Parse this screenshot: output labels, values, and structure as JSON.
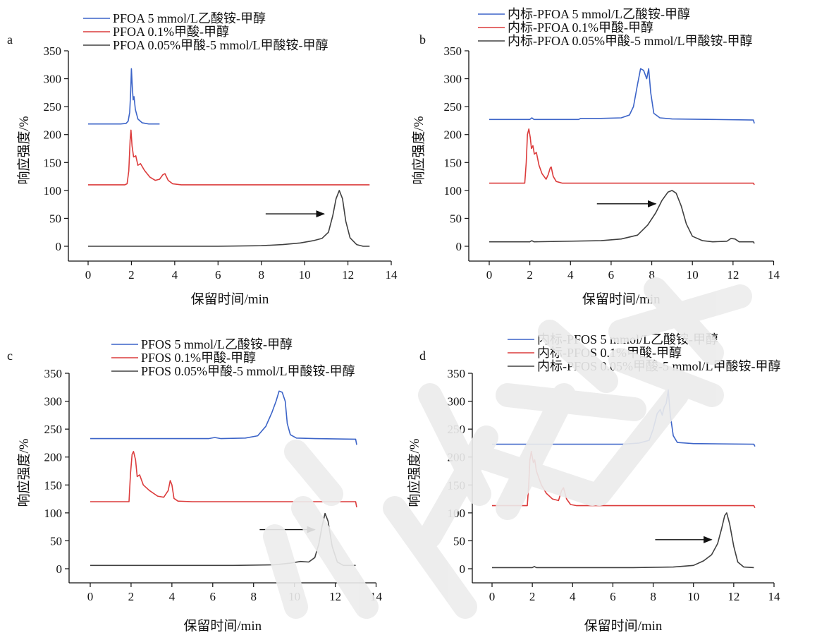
{
  "chart_data": [
    {
      "panel": "a",
      "type": "line",
      "xlabel": "保留时间/min",
      "ylabel": "响应强度/%",
      "xlim": [
        0,
        14
      ],
      "ylim": [
        0,
        350
      ],
      "xticks": [
        0,
        2,
        4,
        6,
        8,
        10,
        12,
        14
      ],
      "yticks": [
        0,
        50,
        100,
        150,
        200,
        250,
        300,
        350
      ],
      "series": [
        {
          "name": "PFOA 5 mmol/L乙酸铵-甲醇",
          "color": "#3c64c8",
          "points": [
            [
              0,
              219
            ],
            [
              1.5,
              219
            ],
            [
              1.75,
              220
            ],
            [
              1.85,
              224
            ],
            [
              1.92,
              240
            ],
            [
              1.97,
              280
            ],
            [
              2.0,
              318
            ],
            [
              2.04,
              285
            ],
            [
              2.08,
              262
            ],
            [
              2.12,
              268
            ],
            [
              2.18,
              245
            ],
            [
              2.3,
              228
            ],
            [
              2.5,
              221
            ],
            [
              2.8,
              219
            ],
            [
              3.3,
              219
            ]
          ]
        },
        {
          "name": "PFOA 0.1%甲酸-甲醇",
          "color": "#dc3c3c",
          "points": [
            [
              0,
              110
            ],
            [
              1.7,
              110
            ],
            [
              1.8,
              112
            ],
            [
              1.88,
              135
            ],
            [
              1.94,
              190
            ],
            [
              1.98,
              208
            ],
            [
              2.03,
              180
            ],
            [
              2.1,
              160
            ],
            [
              2.2,
              162
            ],
            [
              2.3,
              145
            ],
            [
              2.42,
              148
            ],
            [
              2.6,
              136
            ],
            [
              2.85,
              124
            ],
            [
              3.1,
              118
            ],
            [
              3.3,
              120
            ],
            [
              3.45,
              128
            ],
            [
              3.55,
              130
            ],
            [
              3.7,
              118
            ],
            [
              3.9,
              112
            ],
            [
              4.3,
              110
            ],
            [
              13.0,
              110
            ]
          ]
        },
        {
          "name": "PFOA 0.05%甲酸-5 mmol/L甲酸铵-甲醇",
          "color": "#404040",
          "points": [
            [
              0,
              0
            ],
            [
              6,
              0
            ],
            [
              8,
              1
            ],
            [
              9,
              3
            ],
            [
              9.8,
              6
            ],
            [
              10.4,
              10
            ],
            [
              10.8,
              14
            ],
            [
              11.1,
              25
            ],
            [
              11.3,
              55
            ],
            [
              11.45,
              85
            ],
            [
              11.6,
              100
            ],
            [
              11.75,
              85
            ],
            [
              11.9,
              45
            ],
            [
              12.1,
              15
            ],
            [
              12.4,
              3
            ],
            [
              12.7,
              0
            ],
            [
              13.0,
              0
            ]
          ]
        }
      ],
      "annotations": [
        {
          "type": "arrow",
          "from": [
            8.2,
            58
          ],
          "to": [
            10.9,
            58
          ]
        }
      ]
    },
    {
      "panel": "b",
      "type": "line",
      "xlabel": "保留时间/min",
      "ylabel": "响应强度/%",
      "xlim": [
        0,
        14
      ],
      "ylim": [
        0,
        350
      ],
      "xticks": [
        0,
        2,
        4,
        6,
        8,
        10,
        12,
        14
      ],
      "yticks": [
        0,
        50,
        100,
        150,
        200,
        250,
        300,
        350
      ],
      "series": [
        {
          "name": "内标-PFOA 5 mmol/L乙酸铵-甲醇",
          "color": "#3c64c8",
          "points": [
            [
              0,
              227
            ],
            [
              2.0,
              227
            ],
            [
              2.1,
              230
            ],
            [
              2.2,
              227
            ],
            [
              4.4,
              227
            ],
            [
              4.5,
              229
            ],
            [
              5.5,
              229
            ],
            [
              6.5,
              230
            ],
            [
              6.9,
              235
            ],
            [
              7.1,
              250
            ],
            [
              7.3,
              290
            ],
            [
              7.45,
              318
            ],
            [
              7.6,
              315
            ],
            [
              7.75,
              300
            ],
            [
              7.85,
              318
            ],
            [
              7.95,
              275
            ],
            [
              8.1,
              238
            ],
            [
              8.4,
              230
            ],
            [
              9.0,
              228
            ],
            [
              11.0,
              227
            ],
            [
              13.0,
              226
            ],
            [
              13.05,
              220
            ]
          ]
        },
        {
          "name": "内标-PFOA 0.1%甲酸-甲醇",
          "color": "#dc3c3c",
          "points": [
            [
              0,
              113
            ],
            [
              1.75,
              113
            ],
            [
              1.82,
              150
            ],
            [
              1.88,
              200
            ],
            [
              1.95,
              210
            ],
            [
              2.02,
              195
            ],
            [
              2.08,
              175
            ],
            [
              2.15,
              180
            ],
            [
              2.22,
              165
            ],
            [
              2.32,
              168
            ],
            [
              2.45,
              145
            ],
            [
              2.6,
              130
            ],
            [
              2.8,
              120
            ],
            [
              2.9,
              128
            ],
            [
              3.0,
              140
            ],
            [
              3.05,
              142
            ],
            [
              3.15,
              125
            ],
            [
              3.3,
              116
            ],
            [
              3.6,
              113
            ],
            [
              13.0,
              113
            ],
            [
              13.05,
              110
            ]
          ]
        },
        {
          "name": "内标-PFOA 0.05%甲酸-5 mmol/L甲酸铵-甲醇",
          "color": "#404040",
          "points": [
            [
              0,
              8
            ],
            [
              2.0,
              8
            ],
            [
              2.1,
              10
            ],
            [
              2.2,
              8
            ],
            [
              5.5,
              10
            ],
            [
              6.5,
              13
            ],
            [
              7.3,
              20
            ],
            [
              7.8,
              38
            ],
            [
              8.2,
              60
            ],
            [
              8.5,
              82
            ],
            [
              8.8,
              97
            ],
            [
              9.0,
              100
            ],
            [
              9.2,
              95
            ],
            [
              9.45,
              72
            ],
            [
              9.7,
              40
            ],
            [
              10.0,
              18
            ],
            [
              10.5,
              10
            ],
            [
              11.0,
              8
            ],
            [
              11.7,
              9
            ],
            [
              11.9,
              14
            ],
            [
              12.1,
              13
            ],
            [
              12.3,
              8
            ],
            [
              13.0,
              8
            ],
            [
              13.05,
              5
            ]
          ]
        }
      ],
      "annotations": [
        {
          "type": "arrow",
          "from": [
            5.3,
            76
          ],
          "to": [
            8.2,
            76
          ]
        }
      ]
    },
    {
      "panel": "c",
      "type": "line",
      "xlabel": "保留时间/min",
      "ylabel": "响应强度/%",
      "xlim": [
        0,
        14
      ],
      "ylim": [
        0,
        350
      ],
      "xticks": [
        0,
        2,
        4,
        6,
        8,
        10,
        12,
        14
      ],
      "yticks": [
        0,
        50,
        100,
        150,
        200,
        250,
        300,
        350
      ],
      "series": [
        {
          "name": "PFOS 5 mmol/L乙酸铵-甲醇",
          "color": "#3c64c8",
          "points": [
            [
              0,
              233
            ],
            [
              5.8,
              233
            ],
            [
              6.1,
              235
            ],
            [
              6.4,
              233
            ],
            [
              7.6,
              234
            ],
            [
              8.2,
              238
            ],
            [
              8.6,
              255
            ],
            [
              8.9,
              280
            ],
            [
              9.1,
              300
            ],
            [
              9.25,
              318
            ],
            [
              9.4,
              316
            ],
            [
              9.55,
              300
            ],
            [
              9.65,
              260
            ],
            [
              9.8,
              240
            ],
            [
              10.1,
              234
            ],
            [
              11.0,
              233
            ],
            [
              13.0,
              232
            ],
            [
              13.05,
              222
            ]
          ]
        },
        {
          "name": "PFOS 0.1%甲酸-甲醇",
          "color": "#dc3c3c",
          "points": [
            [
              0,
              120
            ],
            [
              1.9,
              120
            ],
            [
              1.97,
              170
            ],
            [
              2.05,
              205
            ],
            [
              2.12,
              210
            ],
            [
              2.22,
              195
            ],
            [
              2.3,
              165
            ],
            [
              2.42,
              168
            ],
            [
              2.6,
              150
            ],
            [
              2.9,
              140
            ],
            [
              3.3,
              130
            ],
            [
              3.6,
              128
            ],
            [
              3.82,
              140
            ],
            [
              3.92,
              158
            ],
            [
              4.0,
              150
            ],
            [
              4.1,
              126
            ],
            [
              4.3,
              121
            ],
            [
              5.0,
              120
            ],
            [
              13.0,
              120
            ],
            [
              13.05,
              110
            ]
          ]
        },
        {
          "name": "PFOS 0.05%甲酸-5 mmol/L甲酸铵-甲醇",
          "color": "#404040",
          "points": [
            [
              0,
              6
            ],
            [
              7,
              6
            ],
            [
              9,
              7
            ],
            [
              9.8,
              10
            ],
            [
              10.3,
              13
            ],
            [
              10.7,
              12
            ],
            [
              11.0,
              20
            ],
            [
              11.2,
              45
            ],
            [
              11.35,
              75
            ],
            [
              11.5,
              99
            ],
            [
              11.65,
              85
            ],
            [
              11.85,
              40
            ],
            [
              12.1,
              12
            ],
            [
              12.4,
              6
            ],
            [
              13.0,
              6
            ]
          ]
        }
      ],
      "annotations": [
        {
          "type": "arrow",
          "from": [
            8.3,
            70
          ],
          "to": [
            11.0,
            70
          ]
        }
      ]
    },
    {
      "panel": "d",
      "type": "line",
      "xlabel": "保留时间/min",
      "ylabel": "响应强度/%",
      "xlim": [
        0,
        14
      ],
      "ylim": [
        0,
        350
      ],
      "xticks": [
        0,
        2,
        4,
        6,
        8,
        10,
        12,
        14
      ],
      "yticks": [
        0,
        50,
        100,
        150,
        200,
        250,
        300,
        350
      ],
      "series": [
        {
          "name": "内标-PFOS 5 mmol/L乙酸铵-甲醇",
          "color": "#3c64c8",
          "points": [
            [
              0,
              223
            ],
            [
              6.5,
              223
            ],
            [
              7.3,
              225
            ],
            [
              7.8,
              230
            ],
            [
              8.0,
              250
            ],
            [
              8.2,
              278
            ],
            [
              8.35,
              285
            ],
            [
              8.45,
              275
            ],
            [
              8.55,
              290
            ],
            [
              8.65,
              296
            ],
            [
              8.75,
              320
            ],
            [
              8.85,
              275
            ],
            [
              9.0,
              238
            ],
            [
              9.2,
              226
            ],
            [
              10,
              224
            ],
            [
              13.0,
              223
            ],
            [
              13.05,
              219
            ]
          ]
        },
        {
          "name": "内标-PFOS 0.1%甲酸-甲醇",
          "color": "#dc3c3c",
          "points": [
            [
              0,
              113
            ],
            [
              1.75,
              113
            ],
            [
              1.82,
              150
            ],
            [
              1.88,
              195
            ],
            [
              1.95,
              210
            ],
            [
              2.0,
              200
            ],
            [
              2.05,
              190
            ],
            [
              2.12,
              195
            ],
            [
              2.2,
              175
            ],
            [
              2.3,
              165
            ],
            [
              2.45,
              150
            ],
            [
              2.7,
              135
            ],
            [
              3.0,
              125
            ],
            [
              3.3,
              122
            ],
            [
              3.45,
              140
            ],
            [
              3.55,
              145
            ],
            [
              3.7,
              125
            ],
            [
              3.9,
              115
            ],
            [
              4.2,
              113
            ],
            [
              13.0,
              113
            ],
            [
              13.05,
              109
            ]
          ]
        },
        {
          "name": "内标-PFOS 0.05%甲酸-5 mmol/L甲酸铵-甲醇",
          "color": "#404040",
          "points": [
            [
              0,
              2
            ],
            [
              2.0,
              2
            ],
            [
              2.1,
              4
            ],
            [
              2.2,
              2
            ],
            [
              7,
              2
            ],
            [
              9,
              3
            ],
            [
              10,
              6
            ],
            [
              10.5,
              14
            ],
            [
              10.9,
              25
            ],
            [
              11.2,
              45
            ],
            [
              11.4,
              72
            ],
            [
              11.55,
              95
            ],
            [
              11.65,
              100
            ],
            [
              11.8,
              80
            ],
            [
              12.0,
              40
            ],
            [
              12.2,
              12
            ],
            [
              12.5,
              3
            ],
            [
              13.0,
              2
            ]
          ]
        }
      ],
      "annotations": [
        {
          "type": "arrow",
          "from": [
            8.1,
            52
          ],
          "to": [
            10.9,
            52
          ]
        }
      ]
    }
  ],
  "watermark_text": "影仪表学会"
}
